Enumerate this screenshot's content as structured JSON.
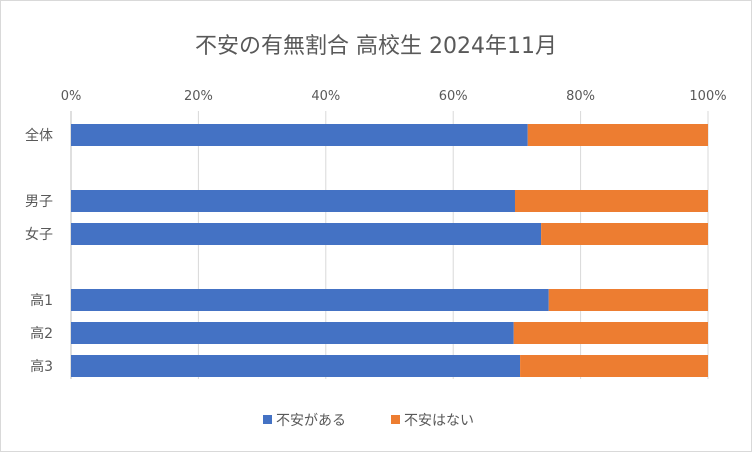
{
  "chart_data": {
    "type": "bar",
    "orientation": "horizontal",
    "stacked": "percent",
    "title": "不安の有無割合 高校生 2024年11月",
    "categories": [
      "全体",
      "男子",
      "女子",
      "高1",
      "高2",
      "高3"
    ],
    "category_groups": [
      [
        "全体"
      ],
      [
        "男子",
        "女子"
      ],
      [
        "高1",
        "高2",
        "高3"
      ]
    ],
    "series": [
      {
        "name": "不安がある",
        "color": "#4472c4",
        "values": [
          71.7,
          69.7,
          73.8,
          75.0,
          69.5,
          70.5
        ]
      },
      {
        "name": "不安はない",
        "color": "#ed7d31",
        "values": [
          28.3,
          30.3,
          26.2,
          25.0,
          30.5,
          29.5
        ]
      }
    ],
    "x_ticks": [
      "0%",
      "20%",
      "40%",
      "60%",
      "80%",
      "100%"
    ],
    "xlim": [
      0,
      100
    ],
    "x_axis_position": "top",
    "grid": true,
    "legend": "bottom"
  }
}
